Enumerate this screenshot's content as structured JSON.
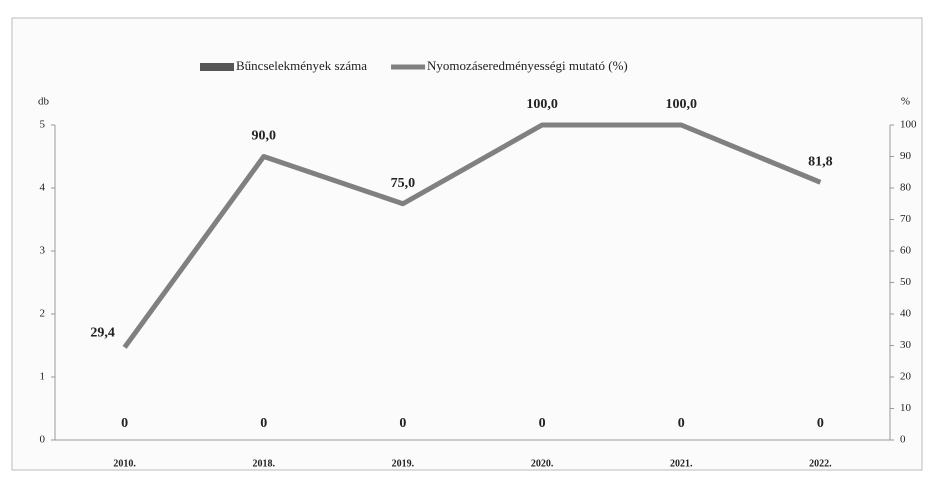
{
  "chart_data": {
    "type": "bar-line",
    "y_label": "db",
    "y2_label": "%",
    "categories": [
      "2010.",
      "2018.",
      "2019.",
      "2020.",
      "2021.",
      "2022."
    ],
    "series": [
      {
        "name": "Bűncselekmények száma",
        "color": "#555555",
        "type": "bar",
        "values": [
          0,
          0,
          0,
          0,
          0,
          0
        ]
      },
      {
        "name": "Nyomozáseredményességi mutató (%)",
        "color": "#808080",
        "type": "line",
        "axis": "y2",
        "values": [
          29.4,
          90,
          75,
          100,
          100,
          81.8
        ],
        "value_labels": [
          "29,4",
          "90,0",
          "75,0",
          "100,0",
          "100,0",
          "81,8"
        ]
      }
    ],
    "ylim": [
      0,
      5
    ],
    "yticks": [
      0,
      1,
      2,
      3,
      4,
      5
    ],
    "y2lim": [
      0,
      100
    ],
    "y2ticks": [
      0,
      10,
      20,
      30,
      40,
      50,
      60,
      70,
      80,
      90,
      100
    ],
    "legend": "top"
  }
}
